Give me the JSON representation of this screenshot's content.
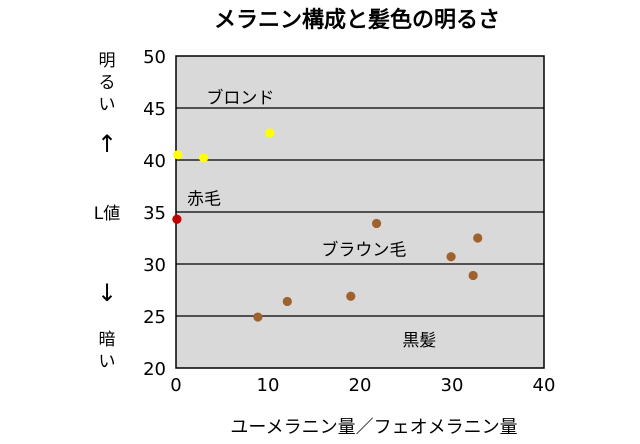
{
  "chart_data": {
    "type": "scatter",
    "title": "メラニン構成と髪色の明るさ",
    "xlabel": "ユーメラニン量／フェオメラニン量",
    "ylabel": "L値",
    "ylabel_top": "明るい",
    "ylabel_bottom": "暗い",
    "ylabel_top_arrow": "↑",
    "ylabel_bottom_arrow": "↓",
    "xlim": [
      0,
      40
    ],
    "ylim": [
      20,
      50
    ],
    "xticks": [
      "0",
      "10",
      "20",
      "30",
      "40"
    ],
    "yticks": [
      "20",
      "25",
      "30",
      "35",
      "40",
      "45",
      "50"
    ],
    "grid": "horizontal",
    "plot_background": "#d9d9d9",
    "series": [
      {
        "name": "ブロンド",
        "color": "#ffff00",
        "points": [
          [
            0.2,
            40.5
          ],
          [
            3,
            40.2
          ],
          [
            10.2,
            42.6
          ]
        ]
      },
      {
        "name": "赤毛",
        "color": "#c00000",
        "points": [
          [
            0.1,
            34.3
          ]
        ]
      },
      {
        "name": "ブラウン毛",
        "color": "#a0622d",
        "points": [
          [
            21.8,
            33.9
          ],
          [
            32.8,
            32.5
          ],
          [
            29.9,
            30.7
          ],
          [
            32.3,
            28.9
          ]
        ]
      },
      {
        "name": "黒髪",
        "color": "#a0622d",
        "points": [
          [
            8.9,
            24.9
          ],
          [
            12.1,
            26.4
          ],
          [
            19,
            26.9
          ]
        ]
      }
    ],
    "annotations": [
      {
        "text": "ブロンド",
        "x": 3.3,
        "y": 46
      },
      {
        "text": "赤毛",
        "x": 1.2,
        "y": 36.3
      },
      {
        "text": "ブラウン毛",
        "x": 15.8,
        "y": 31.4
      },
      {
        "text": "黒髪",
        "x": 24.6,
        "y": 22.7
      }
    ]
  }
}
